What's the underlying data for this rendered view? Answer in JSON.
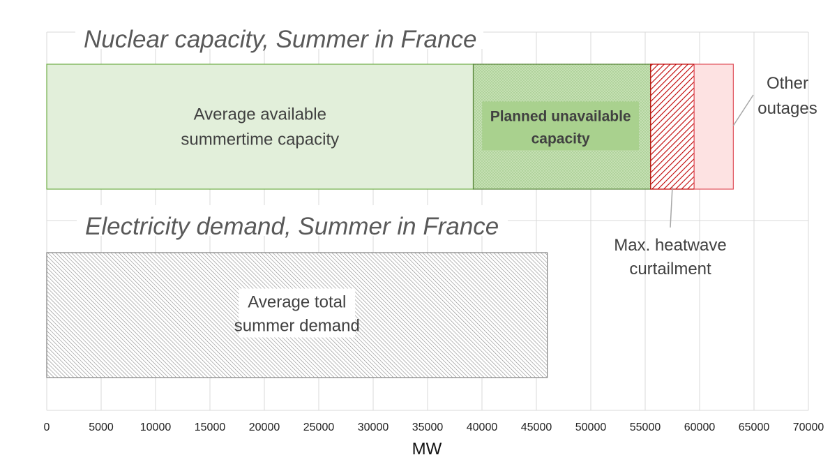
{
  "chart_data": {
    "type": "bar",
    "orientation": "horizontal-stacked",
    "xlabel": "MW",
    "xlim": [
      0,
      70000
    ],
    "xticks": [
      "0",
      "5000",
      "10000",
      "15000",
      "20000",
      "25000",
      "30000",
      "35000",
      "40000",
      "45000",
      "50000",
      "55000",
      "60000",
      "65000",
      "70000"
    ],
    "grid": true,
    "bars": [
      {
        "title": "Nuclear capacity, Summer in France",
        "segments": [
          {
            "label": "Average available summertime capacity",
            "label_lines": [
              "Average available",
              "summertime capacity"
            ],
            "value": 39200,
            "fill": "#e2efda",
            "stroke": "#70ad47",
            "pattern": "none"
          },
          {
            "label": "Planned unavailable capacity",
            "label_lines": [
              "Planned unavailable",
              "capacity"
            ],
            "value": 16300,
            "fill": "#c6e0b4",
            "stroke": "#548235",
            "pattern": "dots"
          },
          {
            "label": "Max. heatwave curtailment",
            "label_lines": [
              "Max. heatwave",
              "curtailment"
            ],
            "value": 4000,
            "fill": "#ffffff",
            "stroke": "#c00000",
            "pattern": "diagonal"
          },
          {
            "label": "Other outages",
            "label_lines": [
              "Other",
              "outages"
            ],
            "value": 3600,
            "fill": "#fde2e2",
            "stroke": "#e0505a",
            "pattern": "none"
          }
        ]
      },
      {
        "title": "Electricity demand, Summer in France",
        "segments": [
          {
            "label": "Average total summer demand",
            "label_lines": [
              "Average total",
              "summer demand"
            ],
            "value": 46000,
            "fill": "#ffffff",
            "stroke": "#7f7f7f",
            "pattern": "diagonal-gray"
          }
        ]
      }
    ]
  }
}
